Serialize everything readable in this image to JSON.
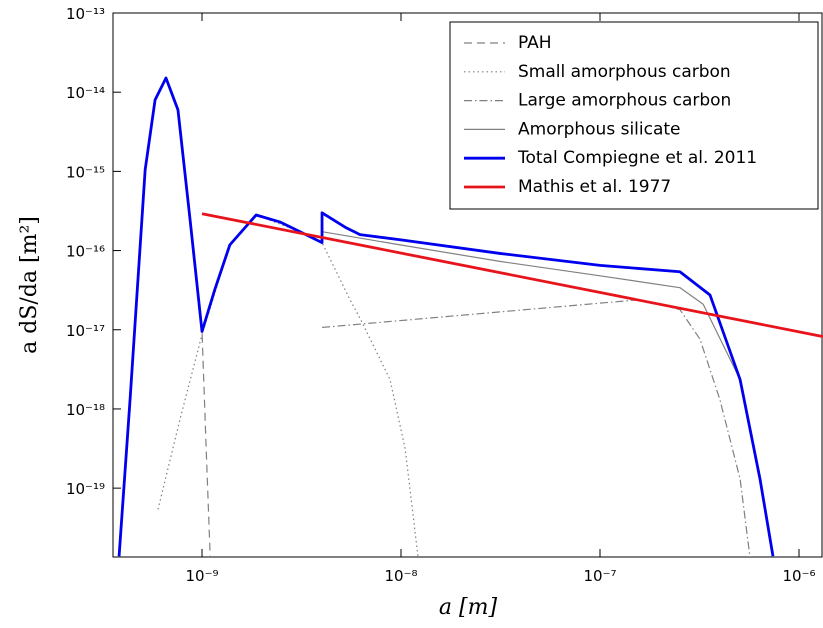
{
  "chart_data": {
    "type": "line",
    "xlabel": "a [m]",
    "ylabel": "a dS/da [m²]",
    "xscale": "log",
    "yscale": "log",
    "xlim": [
      3.57e-10,
      1.32e-06
    ],
    "ylim": [
      1.35e-20,
      1e-13
    ],
    "xticks": [
      {
        "value": 1e-09,
        "label": "10⁻⁹"
      },
      {
        "value": 1e-08,
        "label": "10⁻⁸"
      },
      {
        "value": 1e-07,
        "label": "10⁻⁷"
      },
      {
        "value": 1e-06,
        "label": "10⁻⁶"
      }
    ],
    "yticks": [
      {
        "value": 1e-19,
        "label": "10⁻¹⁹"
      },
      {
        "value": 1e-18,
        "label": "10⁻¹⁸"
      },
      {
        "value": 1e-17,
        "label": "10⁻¹⁷"
      },
      {
        "value": 1e-16,
        "label": "10⁻¹⁶"
      },
      {
        "value": 1e-15,
        "label": "10⁻¹⁵"
      },
      {
        "value": 1e-14,
        "label": "10⁻¹⁴"
      },
      {
        "value": 1e-13,
        "label": "10⁻¹³"
      }
    ],
    "legend": "upper right",
    "series": [
      {
        "name": "PAH",
        "color": "#808080",
        "linestyle": "dashed",
        "linewidth": 1.2,
        "x": [
          6.59e-10,
          7.57e-10,
          8.71e-10,
          1e-09,
          1.05e-09,
          1.1e-09
        ],
        "values": [
          1.5e-14,
          6e-15,
          2.45e-16,
          9.5e-18,
          3e-19,
          1.3e-20
        ]
      },
      {
        "name": "Small amorphous carbon",
        "color": "#808080",
        "linestyle": "dotted",
        "linewidth": 1.2,
        "x": [
          6.01e-10,
          7.75e-10,
          1e-09,
          1.38e-09,
          1.87e-09,
          3.11e-09,
          4.01e-09,
          5.54e-09,
          6.22e-09,
          8.81e-09,
          1.05e-08,
          1.22e-08
        ],
        "values": [
          5.4e-20,
          7.4e-19,
          8.7e-18,
          1.18e-16,
          2.81e-16,
          1.73e-16,
          1.26e-16,
          2.4e-17,
          1.4e-17,
          2.34e-18,
          3.1e-19,
          1.3e-20
        ]
      },
      {
        "name": "Large amorphous carbon",
        "color": "#808080",
        "linestyle": "dashdot",
        "linewidth": 1.2,
        "x": [
          4.01e-09,
          1.59e-07,
          2.52e-07,
          3.18e-07,
          4e-07,
          5.06e-07,
          5.68e-07
        ],
        "values": [
          1.07e-17,
          2.4e-17,
          1.8e-17,
          7.6e-18,
          1.32e-18,
          1.3e-19,
          1.3e-20
        ]
      },
      {
        "name": "Amorphous silicate",
        "color": "#808080",
        "linestyle": "solid",
        "linewidth": 1.2,
        "x": [
          4.01e-09,
          9.9e-09,
          3.14e-08,
          1e-07,
          2.52e-07,
          3.3e-07,
          5.06e-07,
          6.37e-07,
          7.4e-07
        ],
        "values": [
          1.73e-16,
          1.18e-16,
          7.3e-17,
          4.8e-17,
          3.4e-17,
          2.1e-17,
          2.34e-18,
          1.3e-19,
          1.3e-20
        ]
      },
      {
        "name": "Total Compiegne et al. 2011",
        "color": "#0000ee",
        "linestyle": "solid",
        "linewidth": 2.8,
        "x": [
          3.83e-10,
          4.35e-10,
          5.18e-10,
          5.81e-10,
          6.59e-10,
          7.57e-10,
          8.71e-10,
          1e-09,
          1.16e-09,
          1.38e-09,
          1.87e-09,
          2.46e-09,
          3.11e-09,
          4.01e-09,
          4.01e-09,
          5.3e-09,
          6.22e-09,
          9.9e-09,
          3.14e-08,
          1e-07,
          2.52e-07,
          3.57e-07,
          5.06e-07,
          6.37e-07,
          7.4e-07
        ],
        "values": [
          1.38e-20,
          1.32e-18,
          1.05e-15,
          8e-15,
          1.51e-14,
          5.98e-15,
          2.45e-16,
          9.5e-18,
          3.23e-17,
          1.18e-16,
          2.81e-16,
          2.3e-16,
          1.73e-16,
          1.26e-16,
          3e-16,
          1.94e-16,
          1.59e-16,
          1.37e-16,
          9.2e-17,
          6.5e-17,
          5.4e-17,
          2.75e-17,
          2.34e-18,
          1.3e-19,
          1.38e-20
        ]
      },
      {
        "name": "Mathis et al. 1977",
        "color": "#e8141c",
        "linestyle": "solid",
        "linewidth": 2.8,
        "x": [
          1e-09,
          1.32e-06
        ],
        "values": [
          2.92e-16,
          8.2e-18
        ]
      }
    ]
  }
}
